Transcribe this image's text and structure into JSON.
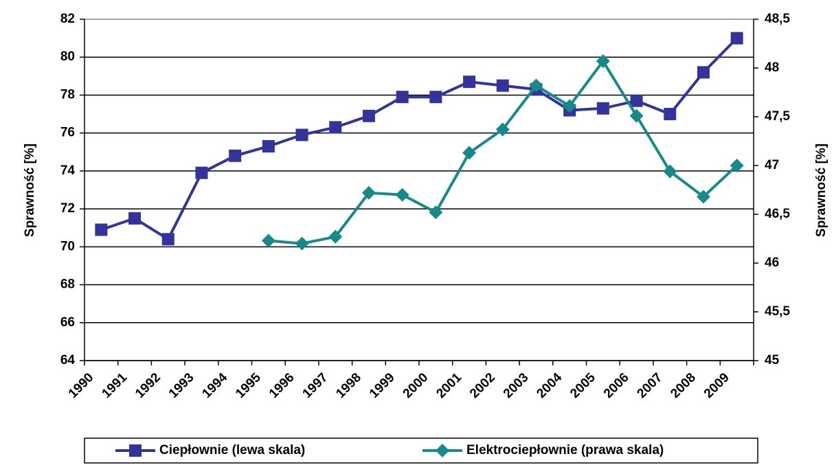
{
  "chart_data": {
    "type": "line",
    "y_label": "Sprawność [%]",
    "y2_label": "Sprawność [%]",
    "categories": [
      "1990",
      "1991",
      "1992",
      "1993",
      "1994",
      "1995",
      "1996",
      "1997",
      "1998",
      "1999",
      "2000",
      "2001",
      "2002",
      "2003",
      "2004",
      "2005",
      "2006",
      "2007",
      "2008",
      "2009"
    ],
    "series": [
      {
        "name": "Ciepłownie (lewa skala)",
        "color": "#33339c",
        "marker": "square",
        "values": [
          70.9,
          71.5,
          70.4,
          73.9,
          74.8,
          75.3,
          75.9,
          76.3,
          76.9,
          77.9,
          77.9,
          78.7,
          78.5,
          78.3,
          77.2,
          77.3,
          77.7,
          77.0,
          79.2,
          81.0
        ]
      },
      {
        "name": "Elektrociepłownie (prawa skala)",
        "color": "#168a8a",
        "marker": "diamond",
        "axis": "y2",
        "values": [
          null,
          null,
          null,
          null,
          null,
          46.23,
          46.2,
          46.27,
          46.72,
          46.7,
          46.52,
          47.13,
          47.37,
          47.82,
          47.61,
          48.07,
          47.51,
          46.94,
          46.68,
          47.0
        ]
      }
    ],
    "ylim": [
      64,
      82
    ],
    "yticks": [
      64,
      66,
      68,
      70,
      72,
      74,
      76,
      78,
      80,
      82
    ],
    "y2lim": [
      45,
      48.5
    ],
    "y2ticks": [
      45,
      {
        "value": 45.5,
        "label": "45,5"
      },
      46,
      {
        "value": 46.5,
        "label": "46,5"
      },
      47,
      {
        "value": 47.5,
        "label": "47,5"
      },
      48,
      {
        "value": 48.5,
        "label": "48,5"
      }
    ],
    "grid": true,
    "legend": "bottom"
  }
}
